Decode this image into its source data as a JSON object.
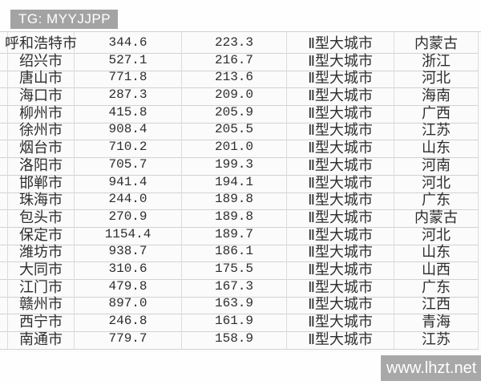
{
  "watermarks": {
    "top": "TG: MYYJJPP",
    "bottom": "www.lhzt.net"
  },
  "colors": {
    "watermark_bg": "#a3a3a3",
    "grid_line_h": "#d2d2d2",
    "grid_line_v": "#dcdcdc",
    "text": "#2d2d2d",
    "table_bg": "#fbfbfb"
  },
  "table": {
    "rows": [
      {
        "city": "呼和浩特市",
        "value_a": "344.6",
        "value_b": "223.3",
        "category": "Ⅱ型大城市",
        "province": "内蒙古"
      },
      {
        "city": "绍兴市",
        "value_a": "527.1",
        "value_b": "216.7",
        "category": "Ⅱ型大城市",
        "province": "浙江"
      },
      {
        "city": "唐山市",
        "value_a": "771.8",
        "value_b": "213.6",
        "category": "Ⅱ型大城市",
        "province": "河北"
      },
      {
        "city": "海口市",
        "value_a": "287.3",
        "value_b": "209.0",
        "category": "Ⅱ型大城市",
        "province": "海南"
      },
      {
        "city": "柳州市",
        "value_a": "415.8",
        "value_b": "205.9",
        "category": "Ⅱ型大城市",
        "province": "广西"
      },
      {
        "city": "徐州市",
        "value_a": "908.4",
        "value_b": "205.5",
        "category": "Ⅱ型大城市",
        "province": "江苏"
      },
      {
        "city": "烟台市",
        "value_a": "710.2",
        "value_b": "201.0",
        "category": "Ⅱ型大城市",
        "province": "山东"
      },
      {
        "city": "洛阳市",
        "value_a": "705.7",
        "value_b": "199.3",
        "category": "Ⅱ型大城市",
        "province": "河南"
      },
      {
        "city": "邯郸市",
        "value_a": "941.4",
        "value_b": "194.1",
        "category": "Ⅱ型大城市",
        "province": "河北"
      },
      {
        "city": "珠海市",
        "value_a": "244.0",
        "value_b": "189.8",
        "category": "Ⅱ型大城市",
        "province": "广东"
      },
      {
        "city": "包头市",
        "value_a": "270.9",
        "value_b": "189.8",
        "category": "Ⅱ型大城市",
        "province": "内蒙古"
      },
      {
        "city": "保定市",
        "value_a": "1154.4",
        "value_b": "189.7",
        "category": "Ⅱ型大城市",
        "province": "河北"
      },
      {
        "city": "潍坊市",
        "value_a": "938.7",
        "value_b": "186.1",
        "category": "Ⅱ型大城市",
        "province": "山东"
      },
      {
        "city": "大同市",
        "value_a": "310.6",
        "value_b": "175.5",
        "category": "Ⅱ型大城市",
        "province": "山西"
      },
      {
        "city": "江门市",
        "value_a": "479.8",
        "value_b": "167.3",
        "category": "Ⅱ型大城市",
        "province": "广东"
      },
      {
        "city": "赣州市",
        "value_a": "897.0",
        "value_b": "163.9",
        "category": "Ⅱ型大城市",
        "province": "江西"
      },
      {
        "city": "西宁市",
        "value_a": "246.8",
        "value_b": "161.9",
        "category": "Ⅱ型大城市",
        "province": "青海"
      },
      {
        "city": "南通市",
        "value_a": "779.7",
        "value_b": "158.9",
        "category": "Ⅱ型大城市",
        "province": "江苏"
      }
    ]
  }
}
